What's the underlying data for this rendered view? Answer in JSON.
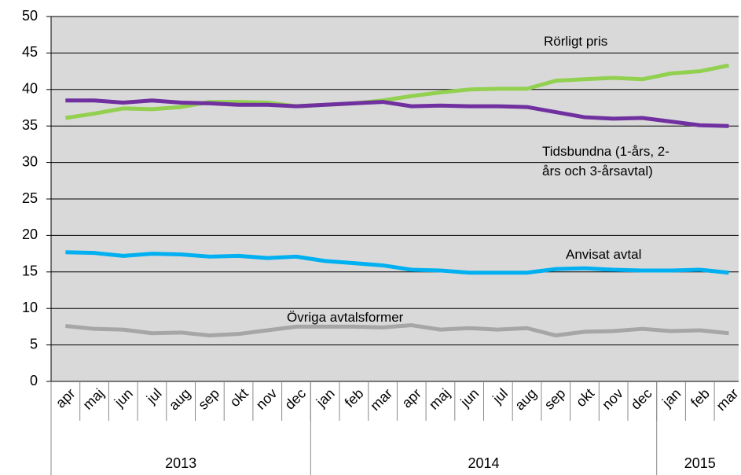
{
  "chart_data": {
    "type": "line",
    "category_groups": [
      {
        "label": "2013",
        "categories": [
          "apr",
          "maj",
          "jun",
          "jul",
          "aug",
          "sep",
          "okt",
          "nov",
          "dec"
        ]
      },
      {
        "label": "2014",
        "categories": [
          "jan",
          "feb",
          "mar",
          "apr",
          "maj",
          "jun",
          "jul",
          "aug",
          "sep",
          "okt",
          "nov",
          "dec"
        ]
      },
      {
        "label": "2015",
        "categories": [
          "jan",
          "feb",
          "mar"
        ]
      }
    ],
    "series": [
      {
        "name": "Rörligt pris",
        "color": "#92d050",
        "values": [
          36.1,
          36.7,
          37.4,
          37.3,
          37.6,
          38.3,
          38.3,
          38.2,
          37.7,
          37.9,
          38.1,
          38.5,
          39.1,
          39.6,
          40.0,
          40.1,
          40.1,
          41.2,
          41.4,
          41.6,
          41.4,
          42.2,
          42.5,
          43.3
        ]
      },
      {
        "name": "Tidsbundna (1-års, 2-års och 3-årsavtal)",
        "color": "#7030a0",
        "values": [
          38.5,
          38.5,
          38.2,
          38.5,
          38.2,
          38.1,
          37.9,
          37.9,
          37.7,
          37.9,
          38.1,
          38.3,
          37.7,
          37.8,
          37.7,
          37.7,
          37.6,
          36.9,
          36.2,
          36.0,
          36.1,
          35.6,
          35.1,
          35.0
        ]
      },
      {
        "name": "Anvisat avtal",
        "color": "#00b0f0",
        "values": [
          17.7,
          17.6,
          17.2,
          17.5,
          17.4,
          17.1,
          17.2,
          16.9,
          17.1,
          16.5,
          16.2,
          15.9,
          15.3,
          15.2,
          14.9,
          14.9,
          14.9,
          15.4,
          15.5,
          15.3,
          15.2,
          15.2,
          15.3,
          14.9
        ]
      },
      {
        "name": "Övriga avtalsformer",
        "color": "#a6a6a6",
        "values": [
          7.6,
          7.2,
          7.1,
          6.6,
          6.7,
          6.3,
          6.5,
          7.0,
          7.5,
          7.5,
          7.5,
          7.4,
          7.7,
          7.1,
          7.3,
          7.1,
          7.3,
          6.3,
          6.8,
          6.9,
          7.2,
          6.9,
          7.0,
          6.6
        ]
      }
    ],
    "ylim": [
      0,
      50
    ],
    "yticks": [
      0,
      5,
      10,
      15,
      20,
      25,
      30,
      35,
      40,
      45,
      50
    ],
    "grid": true
  }
}
